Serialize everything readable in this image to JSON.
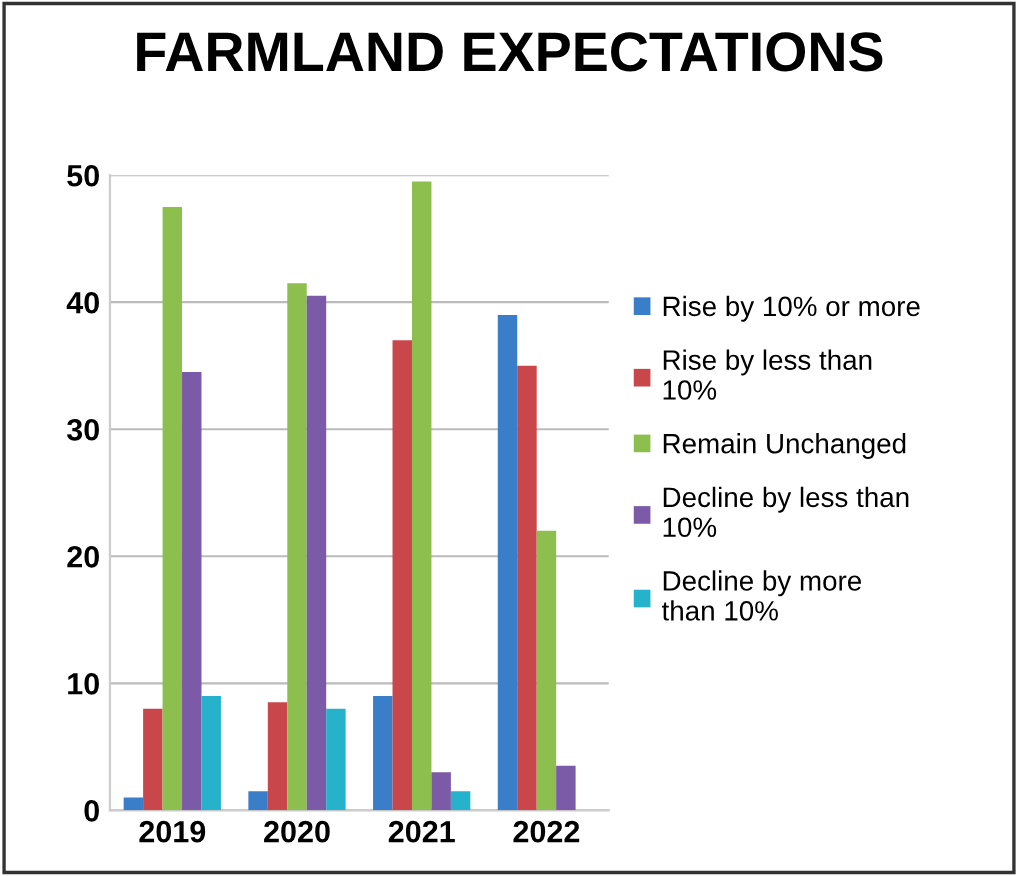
{
  "chart_data": {
    "type": "bar",
    "title": "FARMLAND EXPECTATIONS",
    "categories": [
      "2019",
      "2020",
      "2021",
      "2022"
    ],
    "series": [
      {
        "name": "Rise by 10% or more",
        "color": "#3a7dc9",
        "values": [
          1,
          1.5,
          9,
          39
        ]
      },
      {
        "name": "Rise by less than\n10%",
        "color": "#c9464a",
        "values": [
          8,
          8.5,
          37,
          35
        ]
      },
      {
        "name": "Remain Unchanged",
        "color": "#8cbf4e",
        "values": [
          47.5,
          41.5,
          49.5,
          22
        ]
      },
      {
        "name": "Decline by less than\n10%",
        "color": "#7b5aa8",
        "values": [
          34.5,
          40.5,
          3,
          3.5
        ]
      },
      {
        "name": "Decline by more\nthan 10%",
        "color": "#27b2cc",
        "values": [
          9,
          8,
          1.5,
          null
        ]
      }
    ],
    "ylim": [
      0,
      50
    ],
    "yticks": [
      0,
      10,
      20,
      30,
      40,
      50
    ],
    "grid": "y",
    "legend": "right"
  }
}
